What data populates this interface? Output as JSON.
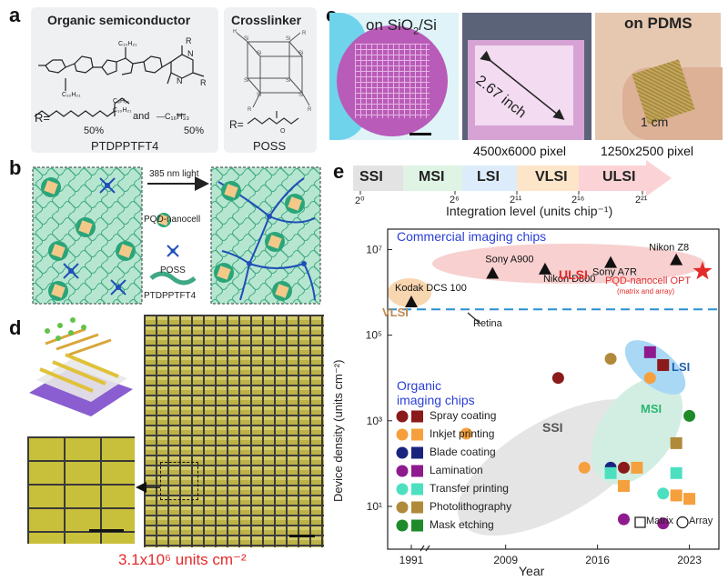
{
  "panels": {
    "a": "a",
    "b": "b",
    "c": "c",
    "d": "d",
    "e": "e"
  },
  "a": {
    "semi_title": "Organic semiconductor",
    "cross_title": "Crosslinker",
    "r_prefix": "R=",
    "r_and": "and",
    "sub_c8": "C₈H₁₇",
    "sub_c10": "C₁₀H₂₁",
    "sub_c16": "—C₁₆H₃₃",
    "pct1": "50%",
    "pct2": "50%",
    "semi_name": "PTDPPTFT4",
    "cross_r": "R=",
    "cross_name": "POSS"
  },
  "b": {
    "light_label": "385 nm light",
    "legend": [
      "PQD-nanocell",
      "POSS",
      "PTDPPTFT4"
    ]
  },
  "c": {
    "wafer_label_pre": "on SiO",
    "wafer_label_sub": "2",
    "wafer_label_post": "/Si",
    "inch_label": "2.67 inch",
    "pdms_label": "on PDMS",
    "cm_label": "1 cm",
    "px1": "4500x6000 pixel",
    "px2": "1250x2500 pixel"
  },
  "d": {
    "density_label": "3.1x10⁶ units cm⁻²"
  },
  "e": {
    "levels": [
      {
        "name": "SSI",
        "color": "#7a7a7a"
      },
      {
        "name": "MSI",
        "color": "#2bb673"
      },
      {
        "name": "LSI",
        "color": "#2a8fd6"
      },
      {
        "name": "VLSI",
        "color": "#f08a24"
      },
      {
        "name": "ULSI",
        "color": "#e8434f"
      }
    ],
    "level_ticks": [
      "2⁰",
      "2⁶",
      "2¹¹",
      "2¹⁶",
      "2²¹"
    ],
    "level_axis": "Integration level (units chip⁻¹)",
    "commercial_title": "Commercial imaging chips",
    "organic_title_1": "Organic",
    "organic_title_2": "imaging chips",
    "ulsi_label": "ULSI",
    "vlsi_label": "VLSI",
    "lsi_label": "LSI",
    "msi_label": "MSI",
    "ssi_label": "SSI",
    "retina_label": "Retina",
    "opt_label": "PQD-nanocell OPT",
    "opt_sub": "(matrix and array)",
    "ylabel": "Device density (units cm⁻²)",
    "xlabel": "Year",
    "x_ticks": [
      "1991",
      "2009",
      "2016",
      "2023"
    ],
    "y_ticks": [
      "10¹",
      "10³",
      "10⁵",
      "10⁷"
    ],
    "methods": [
      {
        "name": "Spray coating",
        "c1": "#8b1a1a",
        "c2": "#8b1a1a"
      },
      {
        "name": "Inkjet printing",
        "c1": "#f5a03c",
        "c2": "#f5a03c"
      },
      {
        "name": "Blade coating",
        "c1": "#1a237e",
        "c2": "#1a237e"
      },
      {
        "name": "Lamination",
        "c1": "#8e1a8e",
        "c2": "#8e1a8e"
      },
      {
        "name": "Transfer printing",
        "c1": "#4de0c0",
        "c2": "#4de0c0"
      },
      {
        "name": "Photolithography",
        "c1": "#b08a3a",
        "c2": "#b08a3a"
      },
      {
        "name": "Mask etching",
        "c1": "#1f8a2a",
        "c2": "#1f8a2a"
      }
    ],
    "key_matrix": "Matrix",
    "key_array": "Array"
  },
  "chart_data": {
    "type": "scatter",
    "xlabel": "Year",
    "ylabel": "Device density (units cm⁻²)",
    "y_scale": "log",
    "xlim": [
      1988,
      2025
    ],
    "ylim": [
      1,
      30000000
    ],
    "commercial": [
      {
        "name": "Kodak DCS 100",
        "x": 1991,
        "y": 600000
      },
      {
        "name": "Sony A900",
        "x": 2008,
        "y": 2800000
      },
      {
        "name": "Nikon D800",
        "x": 2012,
        "y": 3500000
      },
      {
        "name": "Sony A7R",
        "x": 2017,
        "y": 5000000
      },
      {
        "name": "Nikon Z8",
        "x": 2022,
        "y": 5800000
      }
    ],
    "pqd_point": {
      "name": "PQD-nanocell OPT",
      "x": 2024,
      "y": 3100000
    },
    "retina_y": 400000,
    "organic": [
      {
        "method": "Spray coating",
        "shape": "circle",
        "x": 2013,
        "y": 10000
      },
      {
        "method": "Spray coating",
        "shape": "circle",
        "x": 2018,
        "y": 80
      },
      {
        "method": "Spray coating",
        "shape": "square",
        "x": 2021,
        "y": 20000
      },
      {
        "method": "Inkjet printing",
        "shape": "circle",
        "x": 2006,
        "y": 500
      },
      {
        "method": "Inkjet printing",
        "shape": "circle",
        "x": 2015,
        "y": 80
      },
      {
        "method": "Inkjet printing",
        "shape": "circle",
        "x": 2020,
        "y": 10000
      },
      {
        "method": "Inkjet printing",
        "shape": "square",
        "x": 2018,
        "y": 30
      },
      {
        "method": "Inkjet printing",
        "shape": "square",
        "x": 2019,
        "y": 80
      },
      {
        "method": "Inkjet printing",
        "shape": "square",
        "x": 2022,
        "y": 18
      },
      {
        "method": "Inkjet printing",
        "shape": "square",
        "x": 2023,
        "y": 15
      },
      {
        "method": "Blade coating",
        "shape": "circle",
        "x": 2017,
        "y": 80
      },
      {
        "method": "Lamination",
        "shape": "circle",
        "x": 2018,
        "y": 5
      },
      {
        "method": "Lamination",
        "shape": "circle",
        "x": 2021,
        "y": 4
      },
      {
        "method": "Lamination",
        "shape": "square",
        "x": 2020,
        "y": 40000
      },
      {
        "method": "Transfer printing",
        "shape": "circle",
        "x": 2021,
        "y": 20
      },
      {
        "method": "Transfer printing",
        "shape": "square",
        "x": 2017,
        "y": 60
      },
      {
        "method": "Transfer printing",
        "shape": "square",
        "x": 2022,
        "y": 60
      },
      {
        "method": "Photolithography",
        "shape": "circle",
        "x": 2017,
        "y": 28000
      },
      {
        "method": "Photolithography",
        "shape": "square",
        "x": 2022,
        "y": 300
      },
      {
        "method": "Mask etching",
        "shape": "circle",
        "x": 2023,
        "y": 1300
      }
    ]
  }
}
